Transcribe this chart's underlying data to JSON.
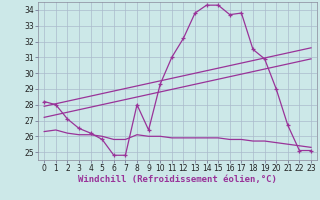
{
  "xlabel": "Windchill (Refroidissement éolien,°C)",
  "background_color": "#cce8e8",
  "grid_color": "#aabbcc",
  "line_color": "#993399",
  "xlim": [
    -0.5,
    23.5
  ],
  "ylim": [
    24.5,
    34.5
  ],
  "yticks": [
    25,
    26,
    27,
    28,
    29,
    30,
    31,
    32,
    33,
    34
  ],
  "xticks": [
    0,
    1,
    2,
    3,
    4,
    5,
    6,
    7,
    8,
    9,
    10,
    11,
    12,
    13,
    14,
    15,
    16,
    17,
    18,
    19,
    20,
    21,
    22,
    23
  ],
  "series": [
    {
      "x": [
        0,
        1,
        2,
        3,
        4,
        5,
        6,
        7,
        8,
        9,
        10,
        11,
        12,
        13,
        14,
        15,
        16,
        17,
        18,
        19,
        20,
        21,
        22,
        23
      ],
      "y": [
        28.2,
        28.0,
        27.1,
        26.5,
        26.2,
        25.8,
        24.8,
        24.8,
        28.0,
        26.4,
        29.3,
        31.0,
        32.2,
        33.8,
        34.3,
        34.3,
        33.7,
        33.8,
        31.5,
        30.9,
        29.0,
        26.7,
        25.1,
        25.1
      ],
      "has_marker": true
    },
    {
      "x": [
        0,
        23
      ],
      "y": [
        27.9,
        31.6
      ],
      "has_marker": false
    },
    {
      "x": [
        0,
        23
      ],
      "y": [
        27.2,
        30.9
      ],
      "has_marker": false
    },
    {
      "x": [
        0,
        1,
        2,
        3,
        4,
        5,
        6,
        7,
        8,
        9,
        10,
        11,
        12,
        13,
        14,
        15,
        16,
        17,
        18,
        19,
        20,
        21,
        22,
        23
      ],
      "y": [
        26.3,
        26.4,
        26.2,
        26.1,
        26.1,
        26.0,
        25.8,
        25.8,
        26.1,
        26.0,
        26.0,
        25.9,
        25.9,
        25.9,
        25.9,
        25.9,
        25.8,
        25.8,
        25.7,
        25.7,
        25.6,
        25.5,
        25.4,
        25.3
      ],
      "has_marker": false
    }
  ],
  "tick_fontsize": 5.5,
  "xlabel_fontsize": 6.5
}
